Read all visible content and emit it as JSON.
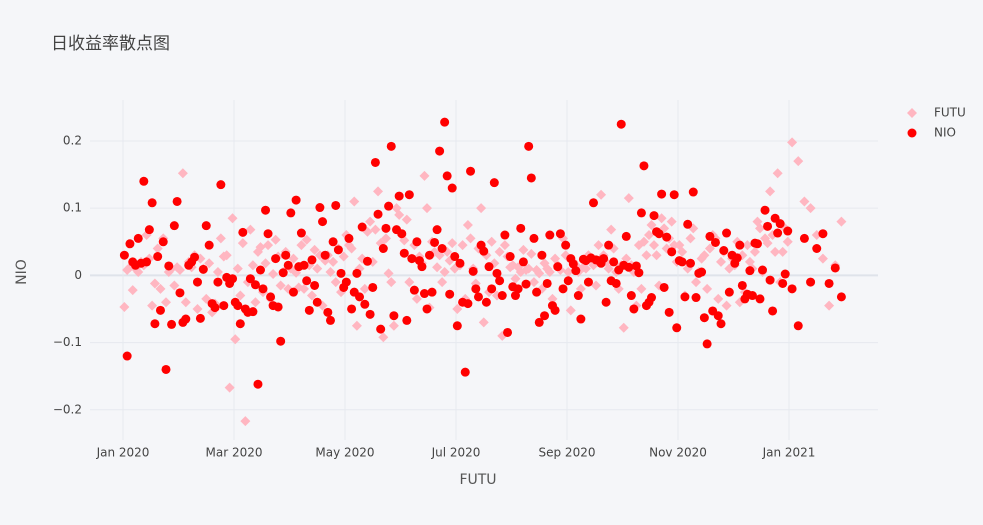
{
  "chart_data": {
    "type": "scatter",
    "title": "日收益率散点图",
    "x_label": "FUTU",
    "y_label": "NIO",
    "legend": "right",
    "grid": true,
    "xlim": [
      "2019-12",
      "2021-02"
    ],
    "xticks": [
      {
        "value": "2020-01",
        "label": "Jan 2020"
      },
      {
        "value": "2020-03",
        "label": "Mar 2020"
      },
      {
        "value": "2020-05",
        "label": "May 2020"
      },
      {
        "value": "2020-07",
        "label": "Jul 2020"
      },
      {
        "value": "2020-09",
        "label": "Sep 2020"
      },
      {
        "value": "2020-11",
        "label": "Nov 2020"
      },
      {
        "value": "2021-01",
        "label": "Jan 2021"
      }
    ],
    "ylim": [
      -0.245,
      0.261
    ],
    "yticks": [
      {
        "value": -0.2,
        "label": "−0.2"
      },
      {
        "value": -0.1,
        "label": "−0.1"
      },
      0,
      0.1,
      0.2
    ],
    "x": [
      "2020-01",
      "2020-01",
      "2020-01",
      "2020-01",
      "2020-01",
      "2020-01",
      "2020-01",
      "2020-01",
      "2020-01",
      "2020-01",
      "2020-01",
      "2020-01",
      "2020-01",
      "2020-01",
      "2020-01",
      "2020-01",
      "2020-01",
      "2020-01",
      "2020-01",
      "2020-01",
      "2020-02",
      "2020-02",
      "2020-02",
      "2020-02",
      "2020-02",
      "2020-02",
      "2020-02",
      "2020-02",
      "2020-02",
      "2020-02",
      "2020-02",
      "2020-02",
      "2020-02",
      "2020-02",
      "2020-02",
      "2020-02",
      "2020-02",
      "2020-02",
      "2020-02",
      "2020-03",
      "2020-03",
      "2020-03",
      "2020-03",
      "2020-03",
      "2020-03",
      "2020-03",
      "2020-03",
      "2020-03",
      "2020-03",
      "2020-03",
      "2020-03",
      "2020-03",
      "2020-03",
      "2020-03",
      "2020-03",
      "2020-03",
      "2020-03",
      "2020-03",
      "2020-03",
      "2020-03",
      "2020-03",
      "2020-04",
      "2020-04",
      "2020-04",
      "2020-04",
      "2020-04",
      "2020-04",
      "2020-04",
      "2020-04",
      "2020-04",
      "2020-04",
      "2020-04",
      "2020-04",
      "2020-04",
      "2020-04",
      "2020-04",
      "2020-04",
      "2020-04",
      "2020-04",
      "2020-04",
      "2020-04",
      "2020-04",
      "2020-05",
      "2020-05",
      "2020-05",
      "2020-05",
      "2020-05",
      "2020-05",
      "2020-05",
      "2020-05",
      "2020-05",
      "2020-05",
      "2020-05",
      "2020-05",
      "2020-05",
      "2020-05",
      "2020-05",
      "2020-05",
      "2020-05",
      "2020-05",
      "2020-05",
      "2020-05",
      "2020-05",
      "2020-06",
      "2020-06",
      "2020-06",
      "2020-06",
      "2020-06",
      "2020-06",
      "2020-06",
      "2020-06",
      "2020-06",
      "2020-06",
      "2020-06",
      "2020-06",
      "2020-06",
      "2020-06",
      "2020-06",
      "2020-06",
      "2020-06",
      "2020-06",
      "2020-06",
      "2020-06",
      "2020-06",
      "2020-06",
      "2020-07",
      "2020-07",
      "2020-07",
      "2020-07",
      "2020-07",
      "2020-07",
      "2020-07",
      "2020-07",
      "2020-07",
      "2020-07",
      "2020-07",
      "2020-07",
      "2020-07",
      "2020-07",
      "2020-07",
      "2020-07",
      "2020-07",
      "2020-07",
      "2020-07",
      "2020-07",
      "2020-07",
      "2020-08",
      "2020-08",
      "2020-08",
      "2020-08",
      "2020-08",
      "2020-08",
      "2020-08",
      "2020-08",
      "2020-08",
      "2020-08",
      "2020-08",
      "2020-08",
      "2020-08",
      "2020-08",
      "2020-08",
      "2020-08",
      "2020-08",
      "2020-08",
      "2020-08",
      "2020-08",
      "2020-08",
      "2020-09",
      "2020-09",
      "2020-09",
      "2020-09",
      "2020-09",
      "2020-09",
      "2020-09",
      "2020-09",
      "2020-09",
      "2020-09",
      "2020-09",
      "2020-09",
      "2020-09",
      "2020-09",
      "2020-09",
      "2020-09",
      "2020-09",
      "2020-09",
      "2020-09",
      "2020-09",
      "2020-09",
      "2020-09",
      "2020-10",
      "2020-10",
      "2020-10",
      "2020-10",
      "2020-10",
      "2020-10",
      "2020-10",
      "2020-10",
      "2020-10",
      "2020-10",
      "2020-10",
      "2020-10",
      "2020-10",
      "2020-10",
      "2020-10",
      "2020-10",
      "2020-10",
      "2020-10",
      "2020-10",
      "2020-10",
      "2020-10",
      "2020-10",
      "2020-11",
      "2020-11",
      "2020-11",
      "2020-11",
      "2020-11",
      "2020-11",
      "2020-11",
      "2020-11",
      "2020-11",
      "2020-11",
      "2020-11",
      "2020-11",
      "2020-11",
      "2020-11",
      "2020-11",
      "2020-11",
      "2020-11",
      "2020-11",
      "2020-11",
      "2020-11",
      "2020-12",
      "2020-12",
      "2020-12",
      "2020-12",
      "2020-12",
      "2020-12",
      "2020-12",
      "2020-12",
      "2020-12",
      "2020-12",
      "2020-12",
      "2020-12",
      "2020-12",
      "2020-12",
      "2020-12",
      "2020-12",
      "2020-12",
      "2020-12",
      "2020-12",
      "2020-12",
      "2020-12",
      "2020-12",
      "2021-01",
      "2021-01",
      "2021-01",
      "2021-01",
      "2021-01",
      "2021-01",
      "2021-01",
      "2021-01",
      "2021-01"
    ],
    "series": [
      {
        "name": "FUTU",
        "color": "#ffb6c1",
        "marker": "diamond",
        "values": [
          -0.047,
          0.008,
          0.012,
          -0.022,
          0.01,
          0.005,
          0.02,
          0.015,
          0.06,
          0.025,
          -0.045,
          -0.012,
          0.04,
          -0.02,
          0.055,
          -0.04,
          0.005,
          0.01,
          -0.015,
          0.012,
          0.008,
          0.152,
          -0.04,
          0.02,
          0.012,
          0.03,
          -0.05,
          0.025,
          0.01,
          -0.035,
          0.018,
          -0.055,
          -0.042,
          0.005,
          0.055,
          0.028,
          0.03,
          -0.167,
          0.085,
          -0.095,
          0.01,
          -0.03,
          0.048,
          -0.217,
          -0.01,
          0.068,
          0.015,
          -0.04,
          0.035,
          0.042,
          -0.025,
          0.018,
          0.045,
          -0.035,
          0.002,
          0.053,
          0.028,
          -0.015,
          0.005,
          0.035,
          -0.02,
          0.01,
          0.025,
          0.004,
          -0.018,
          0.045,
          -0.02,
          0.053,
          0.015,
          -0.03,
          0.038,
          0.01,
          0.03,
          -0.045,
          0.022,
          0.03,
          0.005,
          0.02,
          -0.01,
          0.04,
          -0.025,
          0.028,
          0.06,
          0.045,
          0.04,
          0.11,
          -0.075,
          0.01,
          0.025,
          -0.02,
          0.065,
          0.08,
          0.02,
          0.068,
          0.125,
          0.048,
          -0.092,
          0.055,
          0.003,
          -0.01,
          -0.075,
          0.1,
          0.09,
          0.06,
          0.052,
          0.083,
          -0.01,
          0.025,
          0.045,
          -0.035,
          0.028,
          0.018,
          0.148,
          0.1,
          -0.048,
          0.05,
          0.035,
          0.012,
          0.03,
          -0.01,
          0.005,
          0.035,
          0.022,
          0.048,
          0.01,
          -0.05,
          0.015,
          0.045,
          -0.035,
          0.075,
          0.055,
          0.01,
          -0.012,
          0.04,
          0.1,
          -0.07,
          0.03,
          -0.025,
          0.05,
          0.018,
          -0.03,
          0.035,
          -0.09,
          0.045,
          0.028,
          0.012,
          0.015,
          -0.005,
          0.012,
          0.005,
          0.038,
          0.008,
          0.01,
          0.032,
          -0.01,
          0.008,
          0.003,
          -0.02,
          0.018,
          0.01,
          0.005,
          -0.035,
          0.025,
          0.015,
          0.008,
          0.055,
          0.03,
          0.005,
          -0.052,
          0.02,
          0.015,
          0.005,
          -0.02,
          0.012,
          0.01,
          0.03,
          0.025,
          0.015,
          -0.015,
          0.045,
          0.12,
          0.03,
          0.02,
          0.01,
          0.068,
          0.04,
          0.005,
          -0.02,
          0.015,
          -0.078,
          0.025,
          0.115,
          0.015,
          0.005,
          -0.045,
          0.045,
          -0.02,
          0.05,
          0.03,
          0.06,
          0.075,
          0.045,
          0.03,
          -0.015,
          0.085,
          0.07,
          0.04,
          0.055,
          0.08,
          0.045,
          0.02,
          0.045,
          0.035,
          -0.03,
          0.01,
          0.055,
          0.07,
          -0.01,
          0.005,
          0.025,
          0.03,
          -0.02,
          0.04,
          0.06,
          0.055,
          -0.035,
          0.02,
          0.035,
          -0.045,
          0.01,
          0.025,
          0.015,
          0.05,
          -0.04,
          0.03,
          -0.025,
          0.045,
          0.02,
          0.01,
          0.035,
          0.08,
          0.07,
          0.005,
          0.055,
          0.048,
          0.125,
          0.06,
          0.035,
          0.152,
          -0.01,
          0.035,
          0.07,
          0.05,
          0.198,
          0.17,
          0.11,
          0.1,
          0.06,
          0.025,
          -0.045,
          0.015,
          0.08
        ]
      },
      {
        "name": "NIO",
        "color": "#ff0000",
        "marker": "circle",
        "values": [
          0.03,
          -0.12,
          0.047,
          0.02,
          0.015,
          0.055,
          0.018,
          0.14,
          0.02,
          0.068,
          0.108,
          -0.072,
          0.028,
          -0.052,
          0.05,
          -0.14,
          0.014,
          -0.073,
          0.074,
          0.11,
          -0.026,
          -0.07,
          -0.065,
          0.015,
          0.02,
          0.027,
          -0.01,
          -0.064,
          0.009,
          0.074,
          0.045,
          -0.042,
          -0.048,
          -0.01,
          0.135,
          -0.045,
          -0.003,
          -0.012,
          -0.005,
          -0.04,
          -0.045,
          -0.072,
          0.064,
          -0.05,
          -0.055,
          -0.005,
          -0.054,
          -0.014,
          -0.162,
          0.008,
          -0.02,
          0.097,
          0.062,
          -0.032,
          -0.045,
          0.025,
          -0.047,
          -0.098,
          0.004,
          0.03,
          0.015,
          0.093,
          -0.025,
          0.112,
          0.013,
          0.063,
          0.015,
          -0.008,
          -0.052,
          0.023,
          -0.015,
          -0.04,
          0.101,
          0.08,
          0.03,
          -0.055,
          -0.067,
          0.05,
          0.104,
          0.038,
          0.003,
          -0.018,
          -0.01,
          0.055,
          -0.05,
          -0.025,
          0.003,
          -0.032,
          0.072,
          -0.043,
          0.021,
          -0.058,
          -0.018,
          0.168,
          0.091,
          -0.08,
          0.04,
          0.07,
          0.103,
          0.192,
          -0.06,
          0.068,
          0.118,
          0.062,
          0.033,
          -0.067,
          0.12,
          0.025,
          -0.022,
          0.05,
          0.022,
          0.013,
          -0.027,
          -0.05,
          0.03,
          -0.025,
          0.049,
          0.068,
          0.185,
          0.04,
          0.228,
          0.148,
          -0.028,
          0.13,
          0.028,
          -0.075,
          0.018,
          -0.04,
          -0.144,
          -0.042,
          0.155,
          0.006,
          -0.02,
          -0.032,
          0.045,
          0.036,
          -0.04,
          0.013,
          -0.02,
          0.138,
          0.003,
          -0.008,
          -0.03,
          0.06,
          -0.085,
          0.028,
          -0.017,
          -0.03,
          -0.02,
          0.07,
          0.02,
          -0.013,
          0.192,
          0.145,
          0.055,
          -0.025,
          -0.07,
          0.03,
          -0.06,
          -0.012,
          0.06,
          -0.045,
          -0.052,
          0.013,
          0.062,
          -0.02,
          0.045,
          -0.008,
          0.025,
          0.017,
          0.007,
          -0.03,
          -0.065,
          0.024,
          0.022,
          -0.01,
          0.026,
          0.108,
          0.023,
          0.022,
          0.018,
          0.025,
          -0.04,
          0.045,
          -0.008,
          0.02,
          -0.012,
          0.008,
          0.225,
          0.015,
          0.058,
          0.012,
          -0.03,
          -0.05,
          0.014,
          0.004,
          0.093,
          0.163,
          -0.045,
          -0.04,
          -0.033,
          0.089,
          0.065,
          0.062,
          0.121,
          -0.018,
          0.057,
          -0.055,
          0.035,
          0.12,
          -0.078,
          0.022,
          0.02,
          -0.032,
          0.076,
          0.018,
          0.124,
          -0.033,
          0.003,
          0.005,
          -0.063,
          -0.102,
          0.058,
          -0.053,
          0.049,
          -0.06,
          -0.072,
          0.037,
          0.063,
          -0.025,
          0.03,
          0.018,
          0.026,
          0.045,
          -0.015,
          -0.035,
          -0.028,
          0.007,
          -0.03,
          0.048,
          0.047,
          -0.035,
          0.008,
          0.097,
          0.073,
          -0.007,
          -0.053,
          0.085,
          0.063,
          0.077,
          -0.012,
          0.002,
          0.066,
          -0.02,
          -0.075,
          0.055,
          -0.01,
          0.04,
          0.062,
          -0.012,
          0.011,
          -0.032
        ]
      }
    ]
  }
}
